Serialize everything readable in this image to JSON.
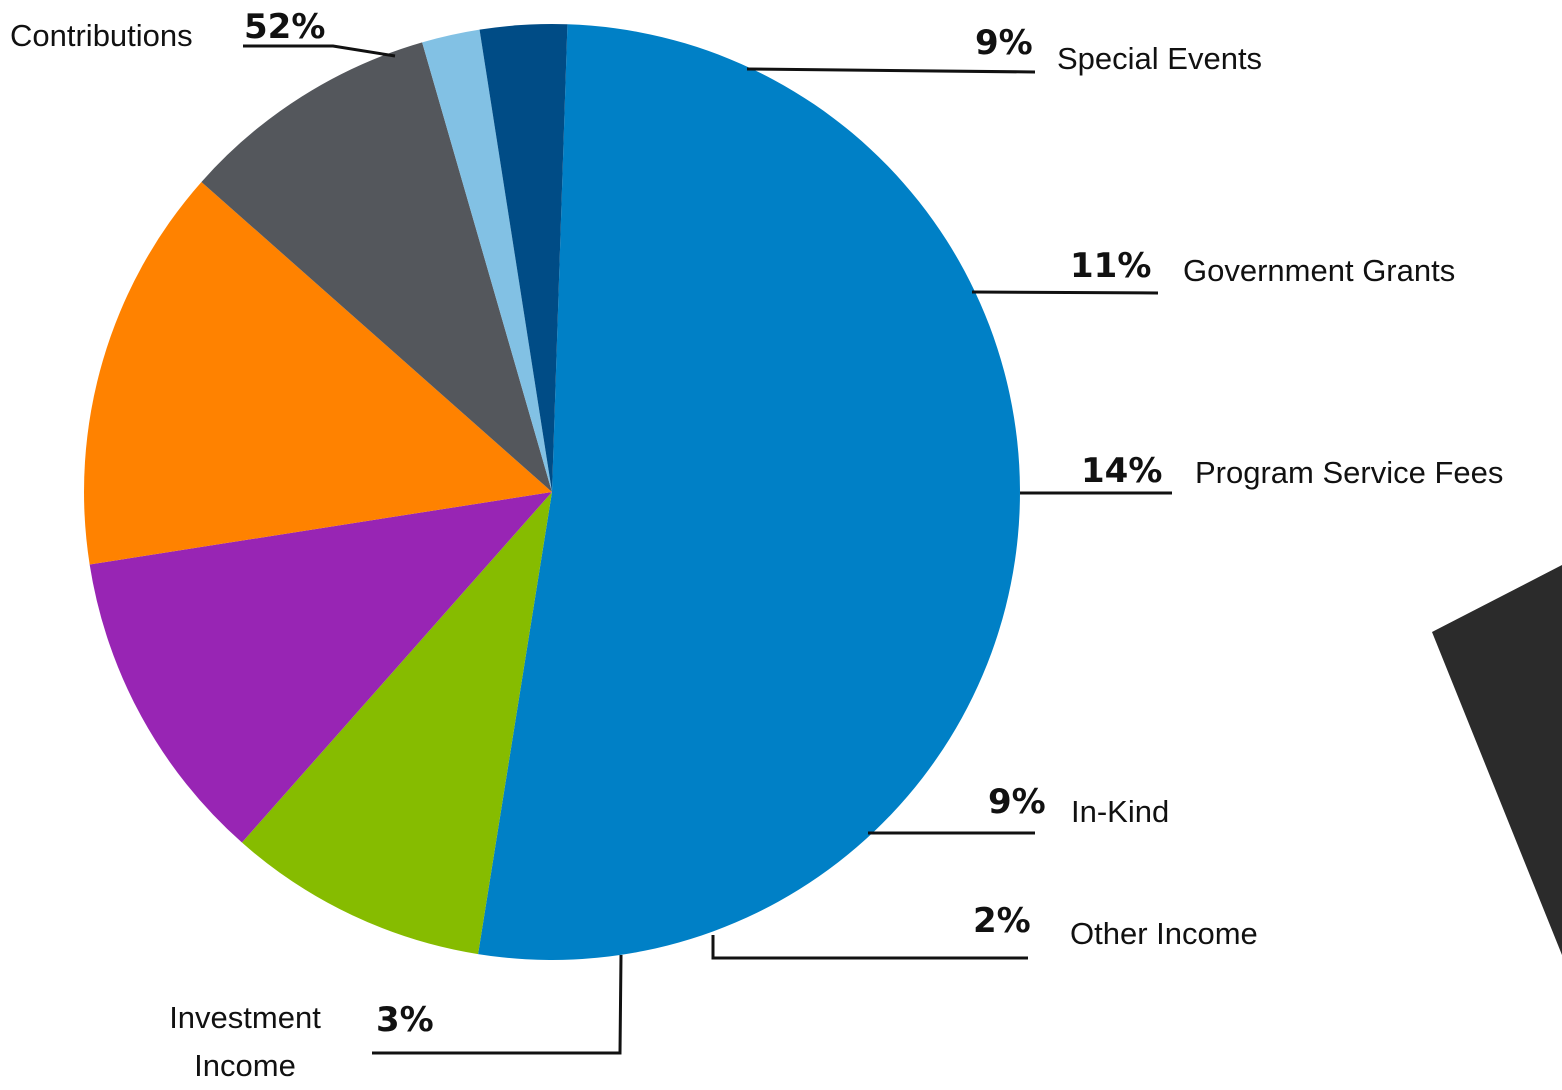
{
  "chart_data": {
    "type": "pie",
    "title": "",
    "start": "12 o'clock, clockwise",
    "slices": [
      {
        "label": "Contributions",
        "pct_label": "52%",
        "value": 52,
        "color": "#0080c6"
      },
      {
        "label": "Special Events",
        "pct_label": "9%",
        "value": 9,
        "color": "#86bc00"
      },
      {
        "label": "Government Grants",
        "pct_label": "11%",
        "value": 11,
        "color": "#9825b4"
      },
      {
        "label": "Program Service Fees",
        "pct_label": "14%",
        "value": 14,
        "color": "#ff8200"
      },
      {
        "label": "In-Kind",
        "pct_label": "9%",
        "value": 9,
        "color": "#54575c"
      },
      {
        "label": "Other Income",
        "pct_label": "2%",
        "value": 2,
        "color": "#82c1e4"
      },
      {
        "label": "Investment Income",
        "pct_label": "3%",
        "value": 3,
        "color": "#004c86"
      }
    ],
    "leader_line_color": "#111111",
    "decoration_color": "#2b2b2b"
  }
}
